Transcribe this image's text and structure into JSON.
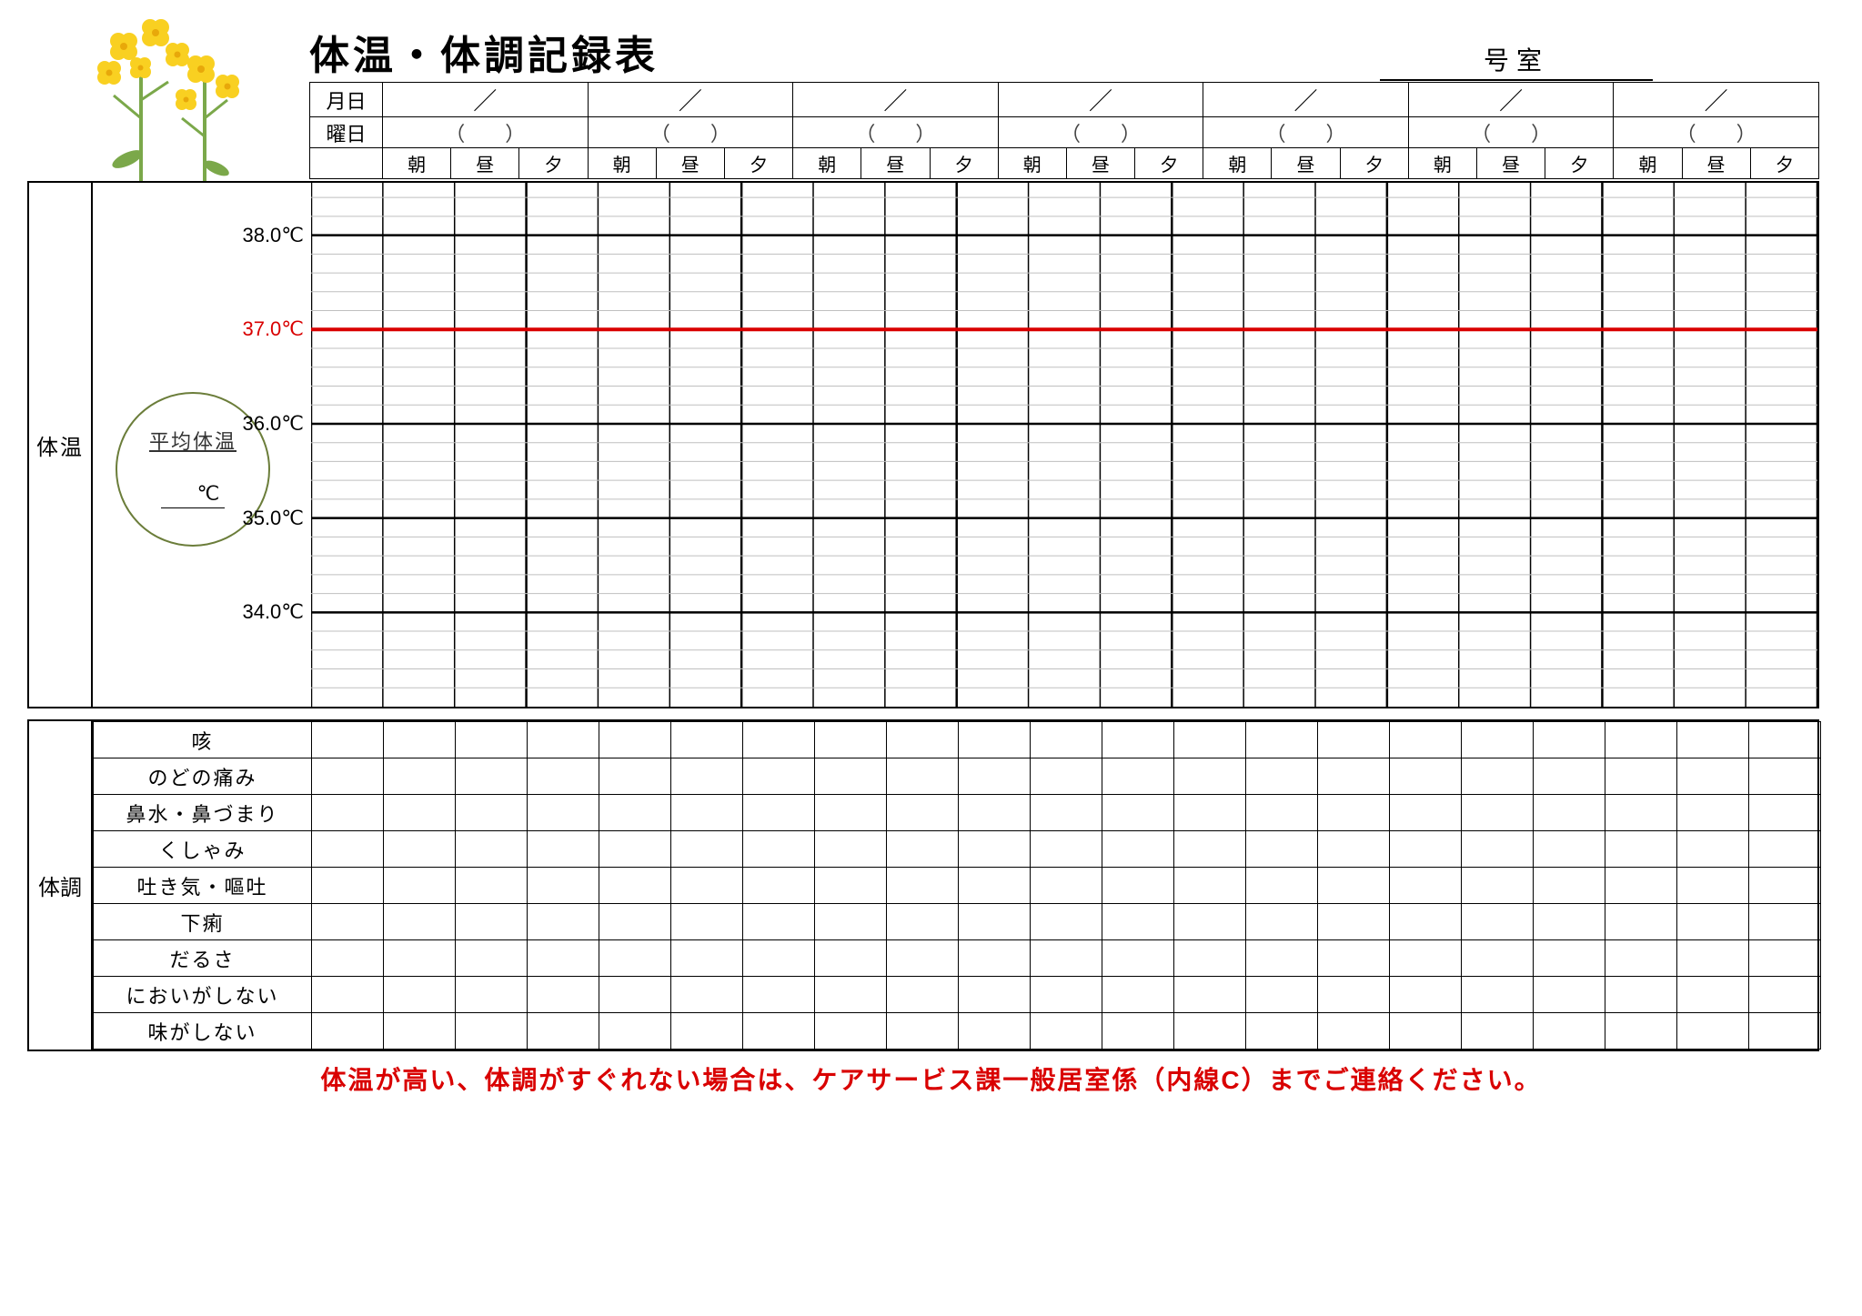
{
  "title": "体温・体調記録表",
  "room_suffix": "号室",
  "header_rows": {
    "date_label": "月日",
    "weekday_label": "曜日",
    "date_slash": "／",
    "paren_left": "（",
    "paren_right": "）",
    "tod": [
      "朝",
      "昼",
      "夕"
    ]
  },
  "num_days": 7,
  "temperature": {
    "section_label": "体温",
    "avg_label": "平均体温",
    "avg_unit": "℃",
    "y_ticks": [
      {
        "value": "38.0℃",
        "major": true,
        "red": false,
        "pos": 0.1
      },
      {
        "value": "37.0℃",
        "major": true,
        "red": true,
        "pos": 0.28
      },
      {
        "value": "36.0℃",
        "major": true,
        "red": false,
        "pos": 0.46
      },
      {
        "value": "35.0℃",
        "major": true,
        "red": false,
        "pos": 0.64
      },
      {
        "value": "34.0℃",
        "major": true,
        "red": false,
        "pos": 0.82
      }
    ],
    "gridline_color_minor": "#bfbfbf",
    "gridline_color_major": "#000000",
    "redline_color": "#d90000",
    "sub_per_major": 5
  },
  "condition": {
    "section_label": "体調",
    "symptoms": [
      "咳",
      "のどの痛み",
      "鼻水・鼻づまり",
      "くしゃみ",
      "吐き気・嘔吐",
      "下痢",
      "だるさ",
      "においがしない",
      "味がしない"
    ]
  },
  "footer": "体温が高い、体調がすぐれない場合は、ケアサービス課一般居室係（内線C）までご連絡ください。",
  "flower": {
    "petal_color": "#f9d021",
    "center_color": "#e8a80a",
    "stem_color": "#7ba84a"
  }
}
